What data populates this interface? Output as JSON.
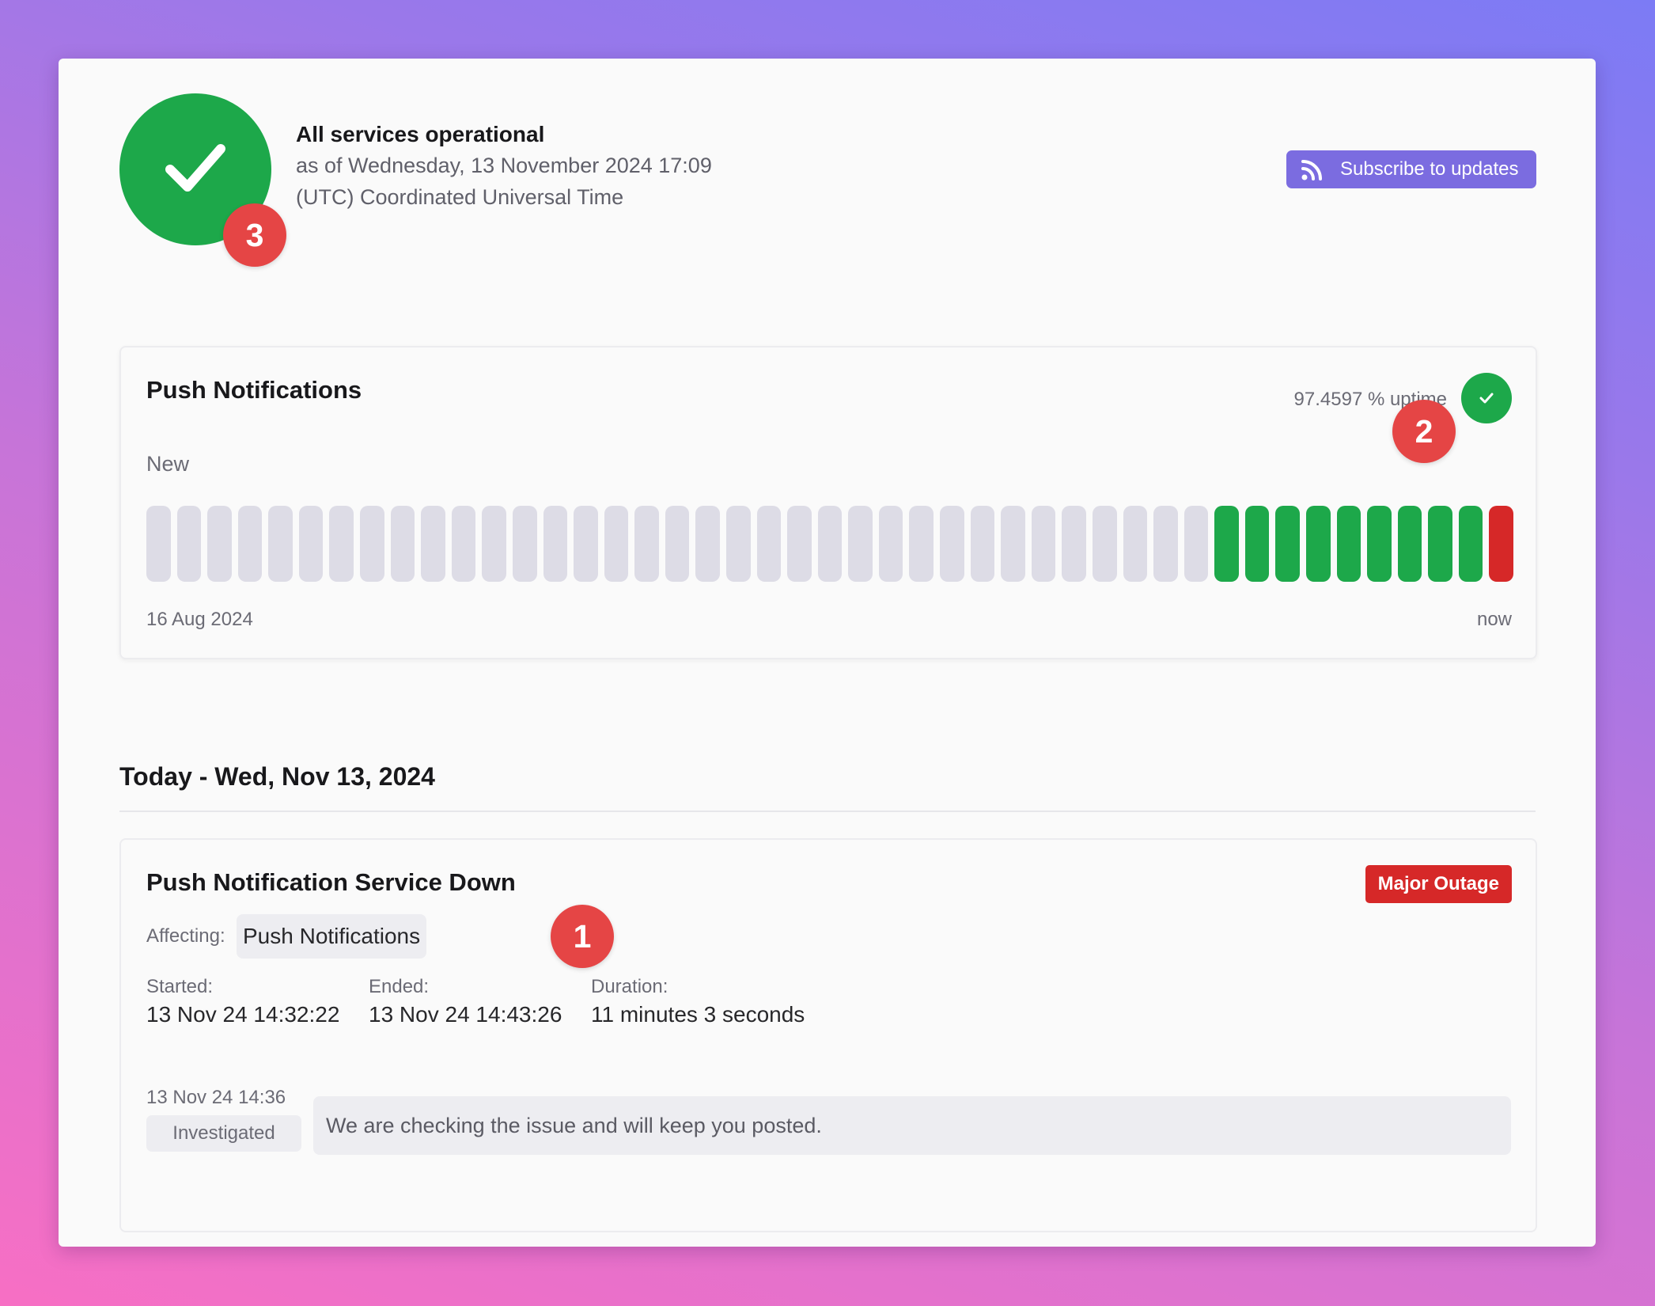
{
  "header": {
    "status_title": "All services operational",
    "as_of": "as of Wednesday, 13 November 2024 17:09",
    "timezone": "(UTC) Coordinated Universal Time",
    "subscribe_label": "Subscribe to updates",
    "status_icon": "check-icon",
    "subscribe_icon": "rss-icon"
  },
  "markers": [
    "1",
    "2",
    "3"
  ],
  "component": {
    "name": "Push Notifications",
    "uptime": "97.4597 % uptime",
    "group_label": "New",
    "range_start": "16 Aug 2024",
    "range_end": "now",
    "bars": [
      "no-data",
      "no-data",
      "no-data",
      "no-data",
      "no-data",
      "no-data",
      "no-data",
      "no-data",
      "no-data",
      "no-data",
      "no-data",
      "no-data",
      "no-data",
      "no-data",
      "no-data",
      "no-data",
      "no-data",
      "no-data",
      "no-data",
      "no-data",
      "no-data",
      "no-data",
      "no-data",
      "no-data",
      "no-data",
      "no-data",
      "no-data",
      "no-data",
      "no-data",
      "no-data",
      "no-data",
      "no-data",
      "no-data",
      "no-data",
      "no-data",
      "operational",
      "operational",
      "operational",
      "operational",
      "operational",
      "operational",
      "operational",
      "operational",
      "operational",
      "outage"
    ]
  },
  "colors": {
    "operational": "#1da84a",
    "outage": "#d62828",
    "no-data": "#dddce6",
    "accent": "#7b6ce0",
    "marker": "#e54545"
  },
  "today": {
    "heading": "Today - Wed, Nov 13, 2024",
    "incident": {
      "title": "Push Notification Service Down",
      "severity": "Major Outage",
      "affecting_label": "Affecting:",
      "affected": "Push Notifications",
      "started_label": "Started:",
      "started": "13 Nov 24 14:32:22",
      "ended_label": "Ended:",
      "ended": "13 Nov 24 14:43:26",
      "duration_label": "Duration:",
      "duration": "11 minutes 3 seconds",
      "update": {
        "time": "13 Nov 24 14:36",
        "status": "Investigated",
        "message": "We are checking the issue and will keep you posted."
      }
    }
  }
}
